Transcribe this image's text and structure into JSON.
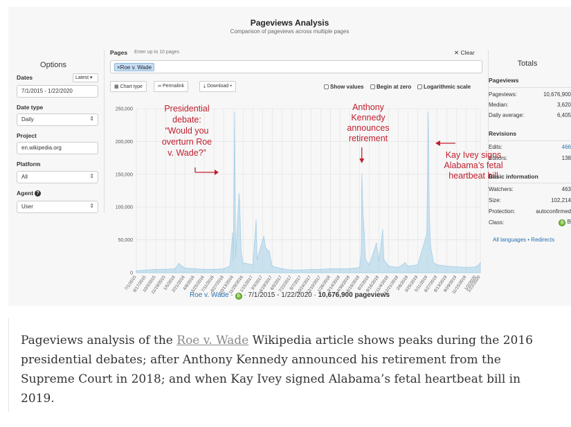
{
  "header": {
    "title": "Pageviews Analysis",
    "subtitle": "Comparison of pageviews across multiple pages"
  },
  "options": {
    "title": "Options",
    "dates_label": "Dates",
    "latest_button": "Latest",
    "date_range": "7/1/2015 - 1/22/2020",
    "date_type_label": "Date type",
    "date_type": "Daily",
    "project_label": "Project",
    "project": "en.wikipedia.org",
    "platform_label": "Platform",
    "platform": "All",
    "agent_label": "Agent",
    "agent": "User"
  },
  "pages": {
    "label": "Pages",
    "hint": "Enter up to 10 pages",
    "clear": "Clear",
    "tag": "Roe v. Wade"
  },
  "toolbar": {
    "chart_type": "Chart type",
    "permalink": "Permalink",
    "download": "Download",
    "show_values": "Show values",
    "begin_at_zero": "Begin at zero",
    "logarithmic": "Logarithmic scale"
  },
  "icons": {
    "chart_type": "grid-icon",
    "permalink": "link-icon",
    "download": "download-icon",
    "help": "question-icon",
    "class": "class-b-badge"
  },
  "colors": {
    "series": "#a6cfe8",
    "annotation": "#c0202f",
    "link": "#2a6fad"
  },
  "chart_data": {
    "type": "area",
    "ylim": [
      0,
      250000
    ],
    "y_ticks": [
      "0",
      "50,000",
      "100,000",
      "150,000",
      "200,000",
      "250,000"
    ],
    "x_ticks": [
      "7/1/2015",
      "8/17/2015",
      "10/3/2015",
      "11/19/2015",
      "1/5/2016",
      "2/21/2016",
      "4/8/2016",
      "5/25/2016",
      "7/11/2016",
      "8/27/2016",
      "10/13/2016",
      "11/29/2016",
      "1/15/2017",
      "3/3/2017",
      "4/19/2017",
      "6/5/2017",
      "7/22/2017",
      "9/7/2017",
      "10/24/2017",
      "12/10/2017",
      "1/26/2018",
      "3/14/2018",
      "4/30/2018",
      "6/16/2018",
      "8/2/2018",
      "9/18/2018",
      "11/4/2018",
      "12/21/2018",
      "2/6/2019",
      "3/25/2019",
      "5/11/2019",
      "6/27/2019",
      "8/13/2019",
      "9/29/2019",
      "11/15/2019",
      "1/2/2020",
      "1/22/2020"
    ],
    "series": [
      {
        "points": [
          [
            "2015-07-01",
            3000
          ],
          [
            "2015-08-17",
            4000
          ],
          [
            "2015-10-03",
            5000
          ],
          [
            "2015-11-19",
            5000
          ],
          [
            "2016-01-05",
            6000
          ],
          [
            "2016-01-22",
            14000
          ],
          [
            "2016-02-21",
            7000
          ],
          [
            "2016-04-08",
            6000
          ],
          [
            "2016-05-25",
            5000
          ],
          [
            "2016-07-11",
            5000
          ],
          [
            "2016-08-27",
            6000
          ],
          [
            "2016-09-26",
            10000
          ],
          [
            "2016-10-09",
            60000
          ],
          [
            "2016-10-13",
            20000
          ],
          [
            "2016-10-19",
            243000
          ],
          [
            "2016-10-24",
            25000
          ],
          [
            "2016-11-09",
            120000
          ],
          [
            "2016-11-12",
            110000
          ],
          [
            "2016-11-20",
            30000
          ],
          [
            "2016-11-29",
            15000
          ],
          [
            "2017-01-15",
            12000
          ],
          [
            "2017-01-31",
            80000
          ],
          [
            "2017-02-05",
            20000
          ],
          [
            "2017-03-03",
            50000
          ],
          [
            "2017-03-10",
            55000
          ],
          [
            "2017-03-18",
            38000
          ],
          [
            "2017-04-05",
            32000
          ],
          [
            "2017-04-19",
            10000
          ],
          [
            "2017-06-05",
            6000
          ],
          [
            "2017-07-22",
            4000
          ],
          [
            "2017-09-07",
            4000
          ],
          [
            "2017-10-24",
            5000
          ],
          [
            "2017-12-10",
            5000
          ],
          [
            "2018-01-26",
            6000
          ],
          [
            "2018-03-14",
            6000
          ],
          [
            "2018-04-30",
            6000
          ],
          [
            "2018-06-16",
            8000
          ],
          [
            "2018-06-24",
            30000
          ],
          [
            "2018-06-27",
            150000
          ],
          [
            "2018-07-02",
            95000
          ],
          [
            "2018-07-09",
            60000
          ],
          [
            "2018-07-15",
            20000
          ],
          [
            "2018-08-02",
            12000
          ],
          [
            "2018-09-06",
            45000
          ],
          [
            "2018-09-18",
            18000
          ],
          [
            "2018-10-06",
            65000
          ],
          [
            "2018-10-12",
            20000
          ],
          [
            "2018-11-04",
            10000
          ],
          [
            "2018-12-21",
            8000
          ],
          [
            "2019-01-22",
            15000
          ],
          [
            "2019-02-06",
            10000
          ],
          [
            "2019-03-25",
            12000
          ],
          [
            "2019-05-08",
            60000
          ],
          [
            "2019-05-15",
            243000
          ],
          [
            "2019-05-20",
            90000
          ],
          [
            "2019-05-26",
            40000
          ],
          [
            "2019-06-10",
            15000
          ],
          [
            "2019-06-27",
            12000
          ],
          [
            "2019-08-13",
            10000
          ],
          [
            "2019-09-29",
            9000
          ],
          [
            "2019-11-15",
            8000
          ],
          [
            "2020-01-02",
            9000
          ],
          [
            "2020-01-22",
            15000
          ]
        ]
      }
    ],
    "annotations": [
      {
        "text": "Presidential debate: “Would you overturn Roe v. Wade?”",
        "date": "2016-10-19"
      },
      {
        "text": "Anthony Kennedy announces retirement",
        "date": "2018-06-27"
      },
      {
        "text": "Kay Ivey signs Alabama’s fetal heartbeat bill",
        "date": "2019-05-15"
      }
    ]
  },
  "chart_footer": {
    "page": "Roe v. Wade",
    "range": "7/1/2015 - 1/22/2020",
    "total": "10,676,900 pageviews",
    "badge": "B"
  },
  "totals": {
    "title": "Totals",
    "pageviews_section": "Pageviews",
    "pageviews_label": "Pageviews:",
    "pageviews": "10,676,900",
    "median_label": "Median:",
    "median": "3,620",
    "daily_avg_label": "Daily average:",
    "daily_avg": "6,405",
    "revisions_section": "Revisions",
    "edits_label": "Edits:",
    "edits": "466",
    "editors_label": "Editors:",
    "editors": "138",
    "basic_section": "Basic information",
    "watchers_label": "Watchers:",
    "watchers": "463",
    "size_label": "Size:",
    "size": "102,214",
    "protection_label": "Protection:",
    "protection": "autoconfirmed",
    "class_label": "Class:",
    "class_value": "B",
    "all_languages": "All languages",
    "redirects": "Redirects"
  },
  "caption": {
    "before": "Pageviews analysis of the ",
    "link": "Roe v. Wade",
    "after": " Wikipedia article shows peaks during the 2016 presidential debates; after Anthony Kennedy announced his retirement from the Supreme Court in 2018; and when Kay Ivey signed Alabama’s fetal heartbeat bill in 2019."
  }
}
